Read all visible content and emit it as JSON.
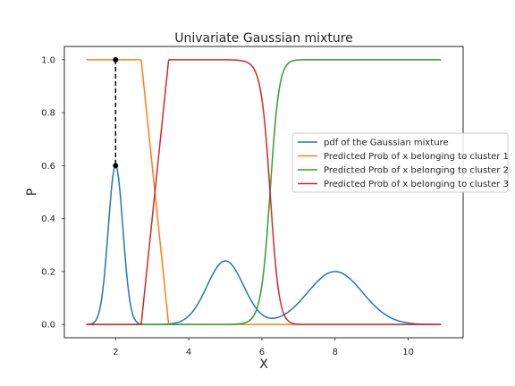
{
  "chart_data": {
    "type": "line",
    "title": "Univariate Gaussian mixture",
    "xlabel": "X",
    "ylabel": "P",
    "xlim": [
      0.6,
      11.5
    ],
    "ylim": [
      -0.05,
      1.05
    ],
    "xticks": [
      2,
      4,
      6,
      8,
      10
    ],
    "yticks": [
      0.0,
      0.2,
      0.4,
      0.6,
      0.8,
      1.0
    ],
    "grid": false,
    "legend_position": "center-right",
    "components": [
      {
        "mean": 2,
        "sd": 0.2
      },
      {
        "mean": 5,
        "sd": 0.5
      },
      {
        "mean": 8,
        "sd": 0.75
      }
    ],
    "x_range": [
      1.2,
      10.9
    ],
    "series": [
      {
        "name": "pdf of the Gaussian mixture",
        "color": "#1f77b4",
        "peaks": [
          {
            "x": 2,
            "y": 0.6
          },
          {
            "x": 5,
            "y": 0.24
          },
          {
            "x": 8,
            "y": 0.2
          }
        ]
      },
      {
        "name": "Predicted Prob of x belonging to cluster 1",
        "color": "#ff7f0e",
        "points": [
          [
            1.2,
            1.0
          ],
          [
            2.7,
            1.0
          ],
          [
            3.45,
            0.0
          ],
          [
            10.9,
            0.0
          ]
        ]
      },
      {
        "name": "Predicted Prob of x belonging to cluster 2",
        "color": "#2ca02c"
      },
      {
        "name": "Predicted Prob of x belonging to cluster 3",
        "color": "#d62728",
        "points": [
          [
            1.2,
            0.0
          ],
          [
            2.7,
            0.0
          ],
          [
            3.45,
            1.0
          ]
        ]
      }
    ],
    "annotation": {
      "x": 2,
      "y_top": 1.0,
      "y_bottom": 0.6,
      "style": "dashed",
      "color": "#000000"
    }
  }
}
